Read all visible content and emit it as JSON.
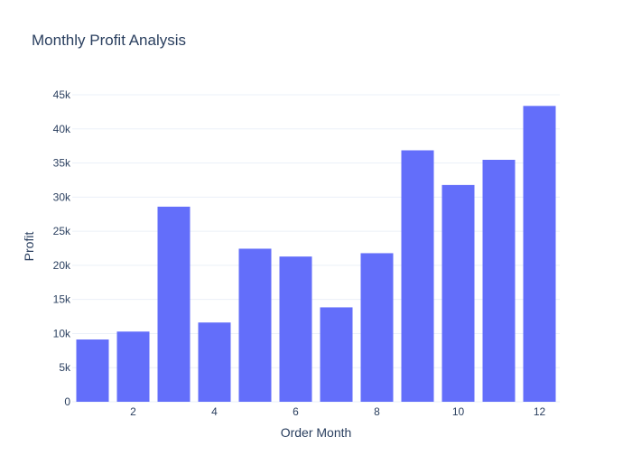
{
  "chart_data": {
    "type": "bar",
    "title": "Monthly Profit Analysis",
    "xlabel": "Order Month",
    "ylabel": "Profit",
    "categories": [
      1,
      2,
      3,
      4,
      5,
      6,
      7,
      8,
      9,
      10,
      11,
      12
    ],
    "values": [
      9130,
      10290,
      28600,
      11620,
      22440,
      21290,
      13840,
      21780,
      36860,
      31780,
      35470,
      43370
    ],
    "ylim": [
      0,
      45000
    ],
    "yticks": [
      0,
      5000,
      10000,
      15000,
      20000,
      25000,
      30000,
      35000,
      40000,
      45000
    ],
    "ytick_labels": [
      "0",
      "5k",
      "10k",
      "15k",
      "20k",
      "25k",
      "30k",
      "35k",
      "40k",
      "45k"
    ],
    "xticks": [
      2,
      4,
      6,
      8,
      10,
      12
    ],
    "xtick_labels": [
      "2",
      "4",
      "6",
      "8",
      "10",
      "12"
    ],
    "bar_color": "#636efa",
    "grid": true
  }
}
